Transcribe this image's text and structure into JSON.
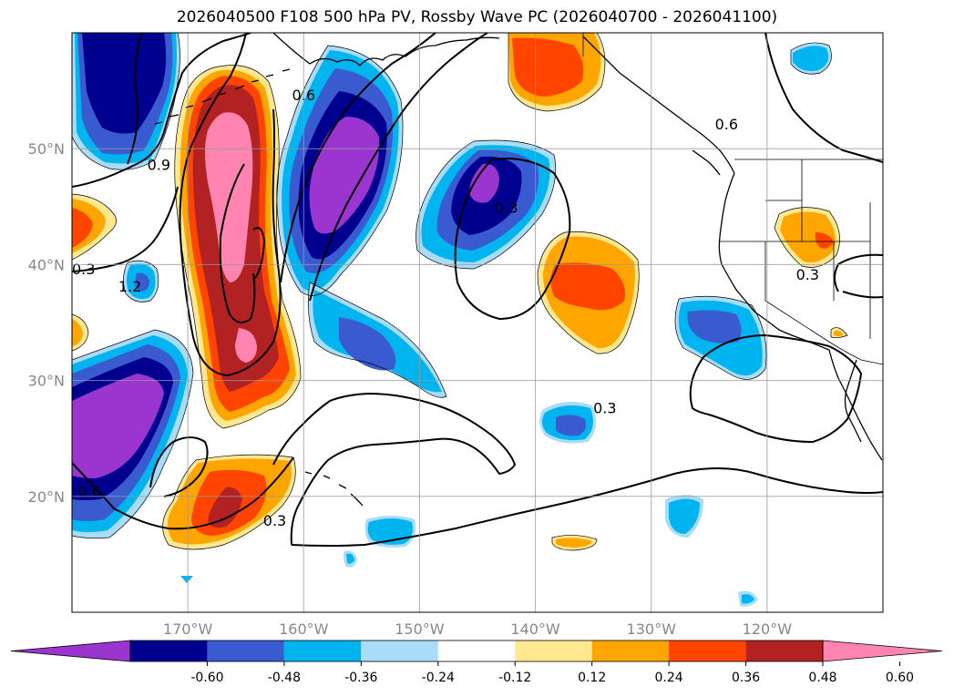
{
  "title": "2026040500 F108 500 hPa PV, Rossby Wave PC (2026040700 - 2026041100)",
  "map": {
    "projection": "equirectangular",
    "lon_range": [
      -180,
      -110
    ],
    "lat_range": [
      10,
      60
    ],
    "lat_ticks": [
      {
        "value": 50,
        "label": "50°N"
      },
      {
        "value": 40,
        "label": "40°N"
      },
      {
        "value": 30,
        "label": "30°N"
      },
      {
        "value": 20,
        "label": "20°N"
      }
    ],
    "lon_ticks": [
      {
        "value": -170,
        "label": "170°W"
      },
      {
        "value": -160,
        "label": "160°W"
      },
      {
        "value": -150,
        "label": "150°W"
      },
      {
        "value": -140,
        "label": "140°W"
      },
      {
        "value": -130,
        "label": "130°W"
      },
      {
        "value": -120,
        "label": "120°W"
      }
    ],
    "grid": true,
    "contour_labels": [
      {
        "text": "0.9",
        "lon": -172.5,
        "lat": 48.5
      },
      {
        "text": "1.2",
        "lon": -175.0,
        "lat": 38.0
      },
      {
        "text": "0.6",
        "lon": -160.0,
        "lat": 54.5
      },
      {
        "text": "0.3",
        "lon": -142.5,
        "lat": 44.8
      },
      {
        "text": "0.3",
        "lon": -179.0,
        "lat": 39.5
      },
      {
        "text": "0.6",
        "lon": -178.5,
        "lat": 20.3
      },
      {
        "text": "0.3",
        "lon": -162.5,
        "lat": 17.8
      },
      {
        "text": "0.3",
        "lon": -134.0,
        "lat": 27.5
      },
      {
        "text": "0.6",
        "lon": -123.5,
        "lat": 52.0
      },
      {
        "text": "0.3",
        "lon": -116.5,
        "lat": 39.0
      }
    ]
  },
  "colorbar": {
    "levels": [
      "-0.60",
      "-0.48",
      "-0.36",
      "-0.24",
      "-0.12",
      "0.12",
      "0.24",
      "0.36",
      "0.48",
      "0.60"
    ],
    "colors": [
      "#9b35d0",
      "#00008f",
      "#3a5ad0",
      "#00b4f0",
      "#a8dcf8",
      "#ffffff",
      "#ffe890",
      "#ffa500",
      "#ff4400",
      "#b22222",
      "#ff85b0"
    ],
    "extend": "both"
  },
  "fill_colors": {
    "purple": "#9b35d0",
    "navy": "#00008f",
    "royal": "#3a5ad0",
    "sky": "#00b4f0",
    "pale_blue": "#a8dcf8",
    "pale_yellow": "#ffe890",
    "orange": "#ffa500",
    "red_orange": "#ff4400",
    "dark_red": "#b22222",
    "pink": "#ff85b0"
  }
}
